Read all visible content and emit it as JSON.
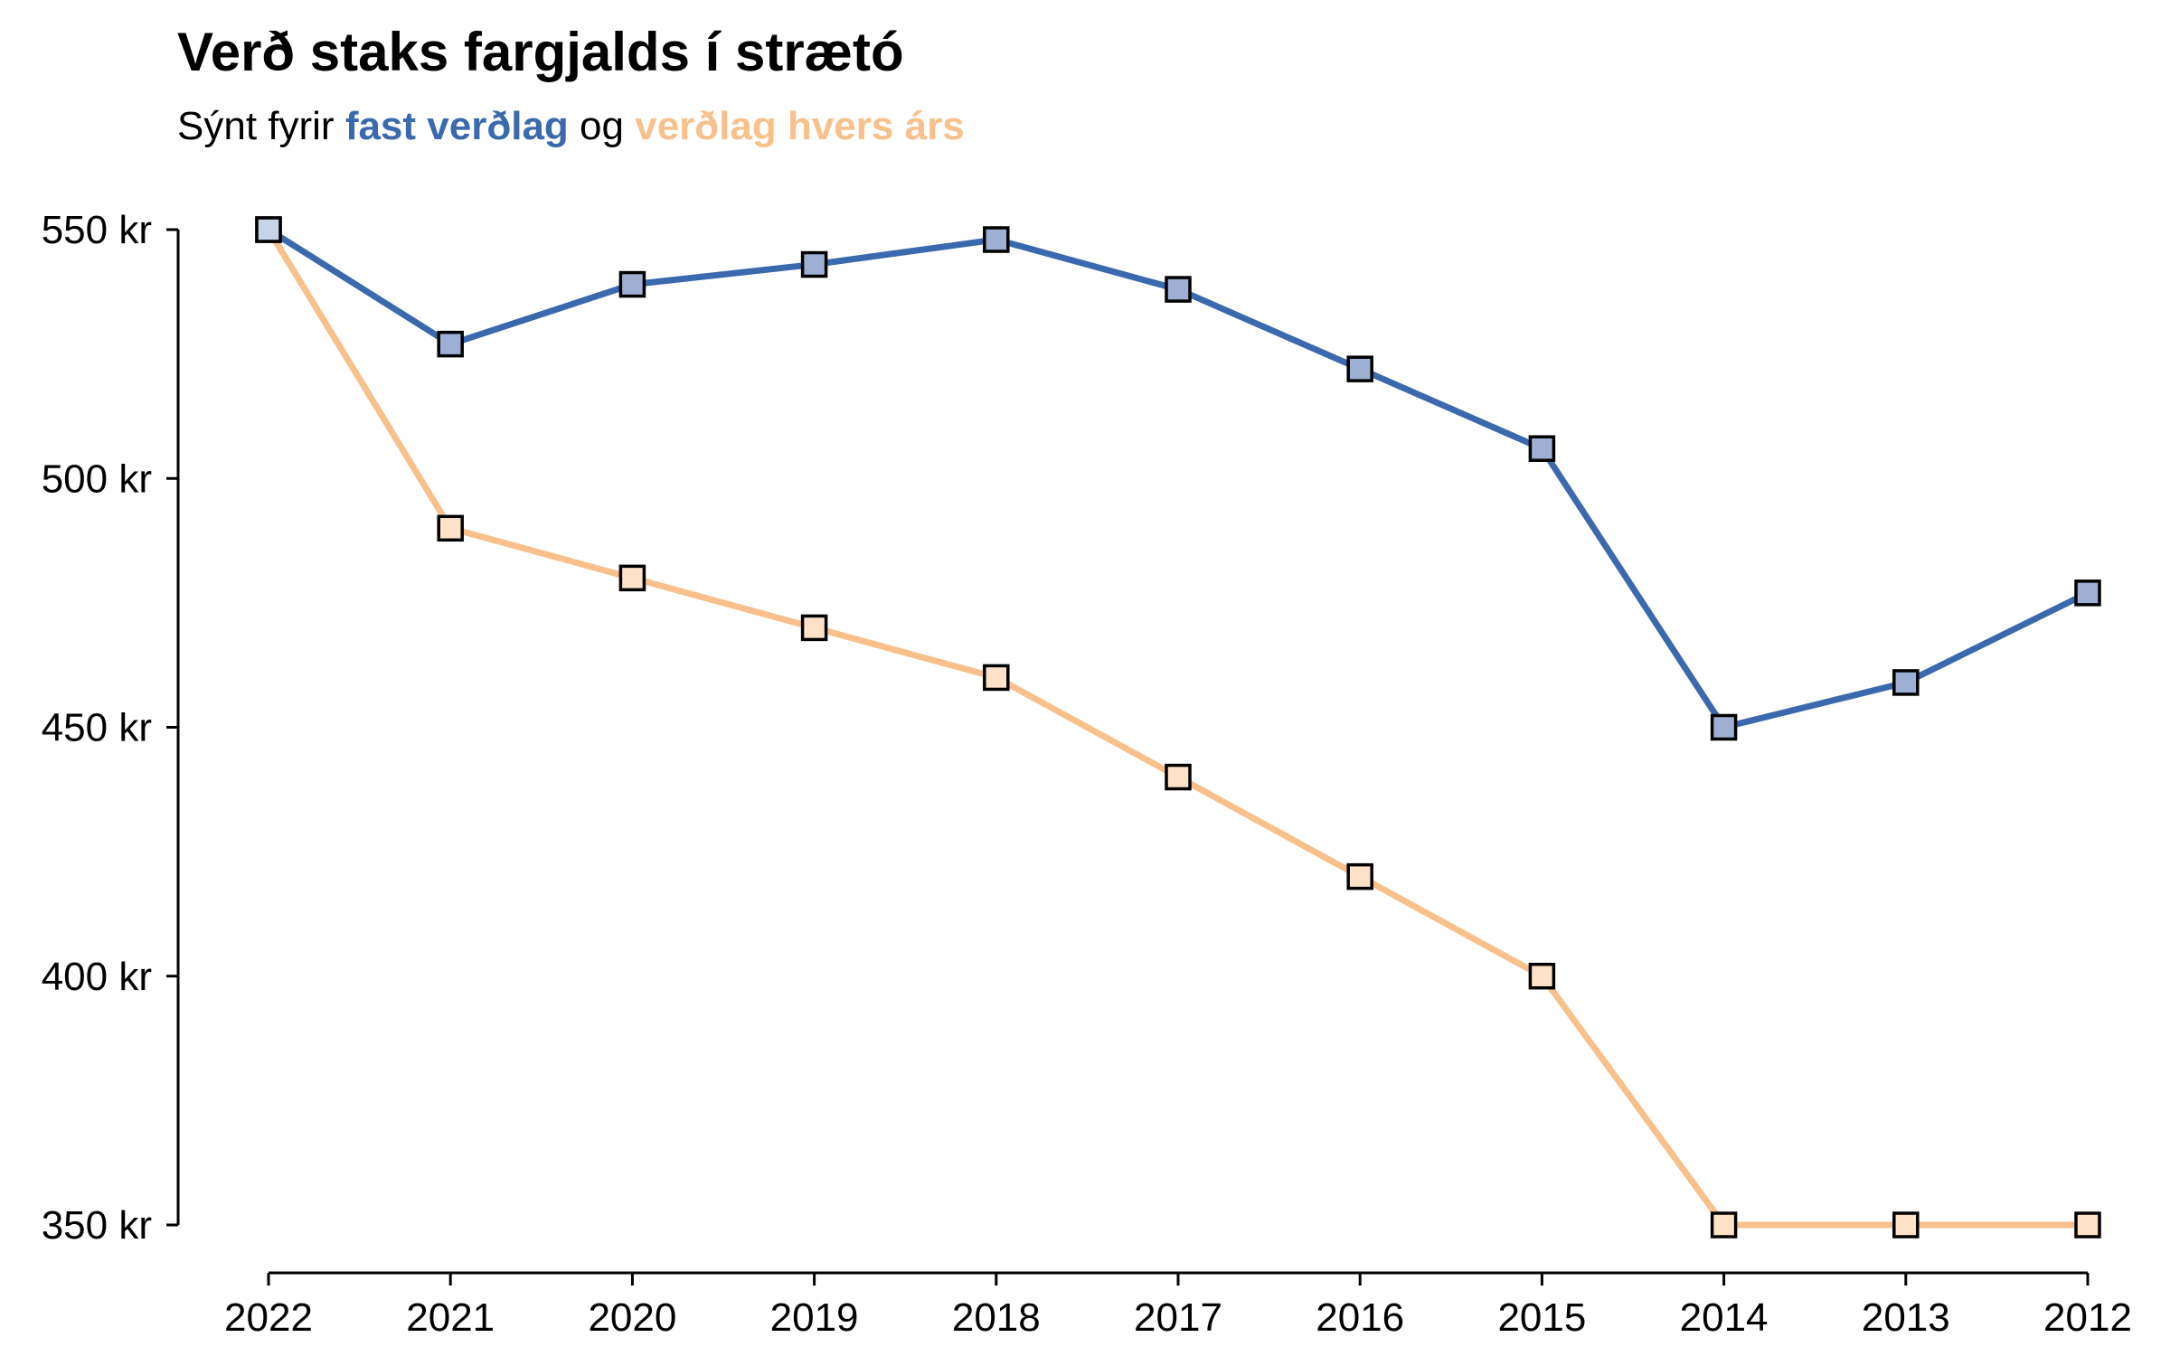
{
  "chart_data": {
    "type": "line",
    "title": "Verð staks fargjalds í strætó",
    "subtitle": {
      "prefix": "Sýnt fyrir",
      "series1_label": "fast verðlag",
      "connector": "og",
      "series2_label": "verðlag hvers árs"
    },
    "xlabel": "",
    "ylabel": "",
    "categories": [
      "2022",
      "2021",
      "2020",
      "2019",
      "2018",
      "2017",
      "2016",
      "2015",
      "2014",
      "2013",
      "2012"
    ],
    "ylim": [
      350,
      550
    ],
    "yticks": [
      350,
      400,
      450,
      500,
      550
    ],
    "y_tick_suffix": " kr",
    "grid": false,
    "legend": "in subtitle",
    "series": [
      {
        "key": "fast",
        "values": [
          550,
          527,
          539,
          543,
          548,
          538,
          522,
          506,
          450,
          459,
          477
        ],
        "line_color": "#3a6aad",
        "marker_fill": "#9db0d3",
        "first_marker_fill": "#c7d4e8"
      },
      {
        "key": "hvers",
        "values": [
          550,
          490,
          480,
          470,
          460,
          440,
          420,
          400,
          350,
          350,
          350
        ],
        "line_color": "#f8c08a",
        "marker_fill": "#fde2c8"
      }
    ]
  }
}
